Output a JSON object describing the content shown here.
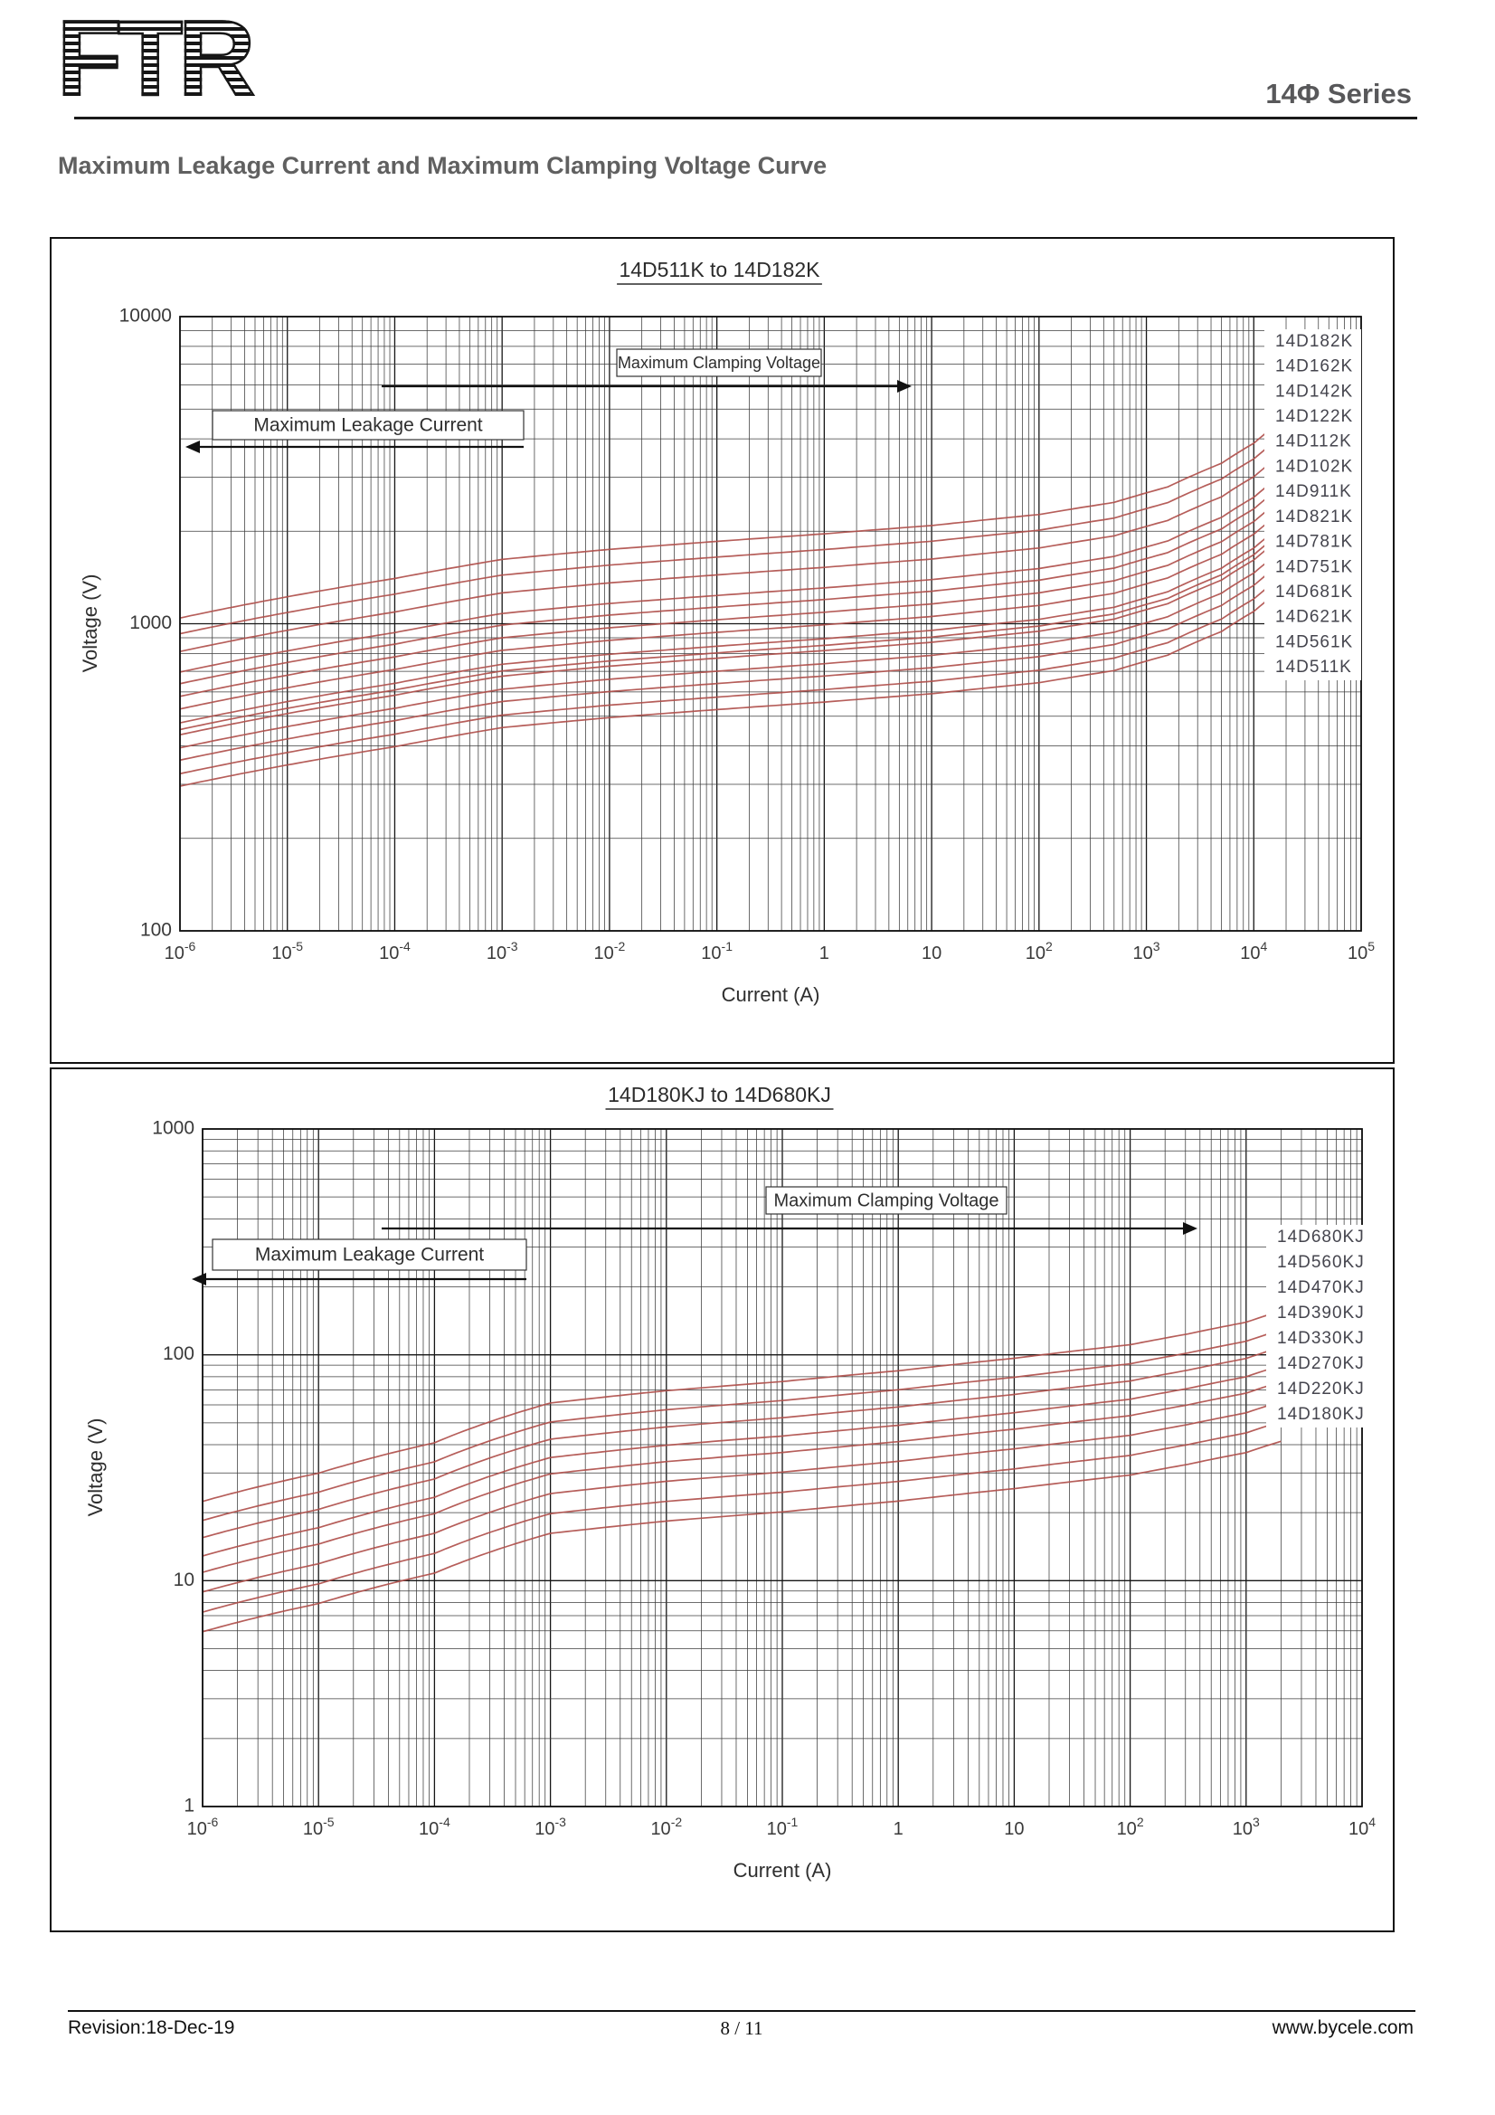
{
  "header": {
    "logo_text": "FTR",
    "series_label": "14Φ Series"
  },
  "page_title": "Maximum Leakage Current and Maximum Clamping Voltage Curve",
  "footer": {
    "revision": "Revision:18-Dec-19",
    "page_indicator": "8 / 11",
    "website": "www.bycele.com"
  },
  "colors": {
    "curve": "#b0504c",
    "grid_minor": "#3c3c3c",
    "grid_major": "#161616",
    "axis_text": "#333333",
    "legend_text": "#45454e",
    "heading_text": "#606060"
  },
  "chart_data": [
    {
      "type": "line",
      "title": "14D511K to 14D182K",
      "xlabel": "Current (A)",
      "ylabel": "Voltage (V)",
      "xlim_log": [
        -6,
        5
      ],
      "ylim_log": [
        2,
        4
      ],
      "grid": true,
      "legend_position": "right-inside",
      "x_ticks": [
        {
          "base": "10",
          "exp": "-6",
          "log": -6
        },
        {
          "base": "10",
          "exp": "-5",
          "log": -5
        },
        {
          "base": "10",
          "exp": "-4",
          "log": -4
        },
        {
          "base": "10",
          "exp": "-3",
          "log": -3
        },
        {
          "base": "10",
          "exp": "-2",
          "log": -2
        },
        {
          "base": "10",
          "exp": "-1",
          "log": -1
        },
        {
          "base": "1",
          "exp": "",
          "log": 0
        },
        {
          "base": "10",
          "exp": "",
          "log": 1
        },
        {
          "base": "10",
          "exp": "2",
          "log": 2
        },
        {
          "base": "10",
          "exp": "3",
          "log": 3
        },
        {
          "base": "10",
          "exp": "4",
          "log": 4
        },
        {
          "base": "10",
          "exp": "5",
          "log": 5
        }
      ],
      "y_ticks": [
        {
          "label": "10000",
          "log": 4
        },
        {
          "label": "1000",
          "log": 3
        },
        {
          "label": "100",
          "log": 2
        }
      ],
      "annotations": {
        "clamping": "Maximum Clamping Voltage",
        "leakage": "Maximum Leakage Current"
      },
      "series": [
        {
          "name": "14D182K",
          "varistor_voltage": 1800
        },
        {
          "name": "14D162K",
          "varistor_voltage": 1600
        },
        {
          "name": "14D142K",
          "varistor_voltage": 1400
        },
        {
          "name": "14D122K",
          "varistor_voltage": 1200
        },
        {
          "name": "14D112K",
          "varistor_voltage": 1100
        },
        {
          "name": "14D102K",
          "varistor_voltage": 1000
        },
        {
          "name": "14D911K",
          "varistor_voltage": 910
        },
        {
          "name": "14D821K",
          "varistor_voltage": 820
        },
        {
          "name": "14D781K",
          "varistor_voltage": 780
        },
        {
          "name": "14D751K",
          "varistor_voltage": 750
        },
        {
          "name": "14D681K",
          "varistor_voltage": 680
        },
        {
          "name": "14D621K",
          "varistor_voltage": 620
        },
        {
          "name": "14D561K",
          "varistor_voltage": 560
        },
        {
          "name": "14D511K",
          "varistor_voltage": 510
        }
      ],
      "clamp_profile": [
        [
          -6,
          0.58
        ],
        [
          -5,
          0.68
        ],
        [
          -4,
          0.78
        ],
        [
          -3,
          0.9
        ],
        [
          -2,
          0.97
        ],
        [
          -1,
          1.03
        ],
        [
          0,
          1.09
        ],
        [
          1,
          1.16
        ],
        [
          2,
          1.26
        ],
        [
          2.7,
          1.38
        ],
        [
          3.2,
          1.55
        ],
        [
          3.7,
          1.85
        ],
        [
          4.0,
          2.15
        ],
        [
          4.3,
          2.6
        ]
      ]
    },
    {
      "type": "line",
      "title": "14D180KJ to 14D680KJ",
      "xlabel": "Current (A)",
      "ylabel": "Voltage (V)",
      "xlim_log": [
        -6,
        4
      ],
      "ylim_log": [
        0,
        3
      ],
      "grid": true,
      "legend_position": "right-outside",
      "x_ticks": [
        {
          "base": "10",
          "exp": "-6",
          "log": -6
        },
        {
          "base": "10",
          "exp": "-5",
          "log": -5
        },
        {
          "base": "10",
          "exp": "-4",
          "log": -4
        },
        {
          "base": "10",
          "exp": "-3",
          "log": -3
        },
        {
          "base": "10",
          "exp": "-2",
          "log": -2
        },
        {
          "base": "10",
          "exp": "-1",
          "log": -1
        },
        {
          "base": "1",
          "exp": "",
          "log": 0
        },
        {
          "base": "10",
          "exp": "",
          "log": 1
        },
        {
          "base": "10",
          "exp": "2",
          "log": 2
        },
        {
          "base": "10",
          "exp": "3",
          "log": 3
        },
        {
          "base": "10",
          "exp": "4",
          "log": 4
        }
      ],
      "y_ticks": [
        {
          "label": "1000",
          "log": 3
        },
        {
          "label": "100",
          "log": 2
        },
        {
          "label": "10",
          "log": 1
        },
        {
          "label": "1",
          "log": 0
        }
      ],
      "annotations": {
        "clamping": "Maximum Clamping Voltage",
        "leakage": "Maximum Leakage Current"
      },
      "series": [
        {
          "name": "14D680KJ",
          "varistor_voltage": 68
        },
        {
          "name": "14D560KJ",
          "varistor_voltage": 56
        },
        {
          "name": "14D470KJ",
          "varistor_voltage": 47
        },
        {
          "name": "14D390KJ",
          "varistor_voltage": 39
        },
        {
          "name": "14D330KJ",
          "varistor_voltage": 33
        },
        {
          "name": "14D270KJ",
          "varistor_voltage": 27
        },
        {
          "name": "14D220KJ",
          "varistor_voltage": 22
        },
        {
          "name": "14D180KJ",
          "varistor_voltage": 18
        }
      ],
      "clamp_profile": [
        [
          -6,
          0.33
        ],
        [
          -5,
          0.44
        ],
        [
          -4,
          0.6
        ],
        [
          -3,
          0.9
        ],
        [
          -2,
          1.02
        ],
        [
          -1,
          1.12
        ],
        [
          0,
          1.25
        ],
        [
          1,
          1.42
        ],
        [
          2,
          1.63
        ],
        [
          2.5,
          1.82
        ],
        [
          3.0,
          2.05
        ],
        [
          3.3,
          2.3
        ]
      ]
    }
  ]
}
